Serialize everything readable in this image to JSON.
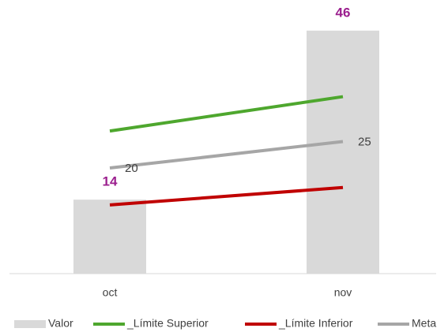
{
  "chart_data": {
    "type": "bar-line",
    "categories": [
      "oct",
      "nov"
    ],
    "ylim": [
      0,
      50
    ],
    "series": [
      {
        "name": "Valor",
        "kind": "bar",
        "color": "#d9d9d9",
        "values": [
          14,
          46
        ],
        "show_labels": true,
        "label_color": "#9b1f8e"
      },
      {
        "name": "_Límite Superior",
        "kind": "line",
        "color": "#4ea72e",
        "values": [
          27,
          33.5
        ],
        "show_labels": false
      },
      {
        "name": "_Límite Inferior",
        "kind": "line",
        "color": "#c00000",
        "values": [
          13,
          16.3
        ],
        "show_labels": false
      },
      {
        "name": "Meta",
        "kind": "line",
        "color": "#a6a6a6",
        "values": [
          20,
          25
        ],
        "show_labels": true,
        "label_color": "#404040"
      }
    ],
    "legend": "bottom"
  }
}
